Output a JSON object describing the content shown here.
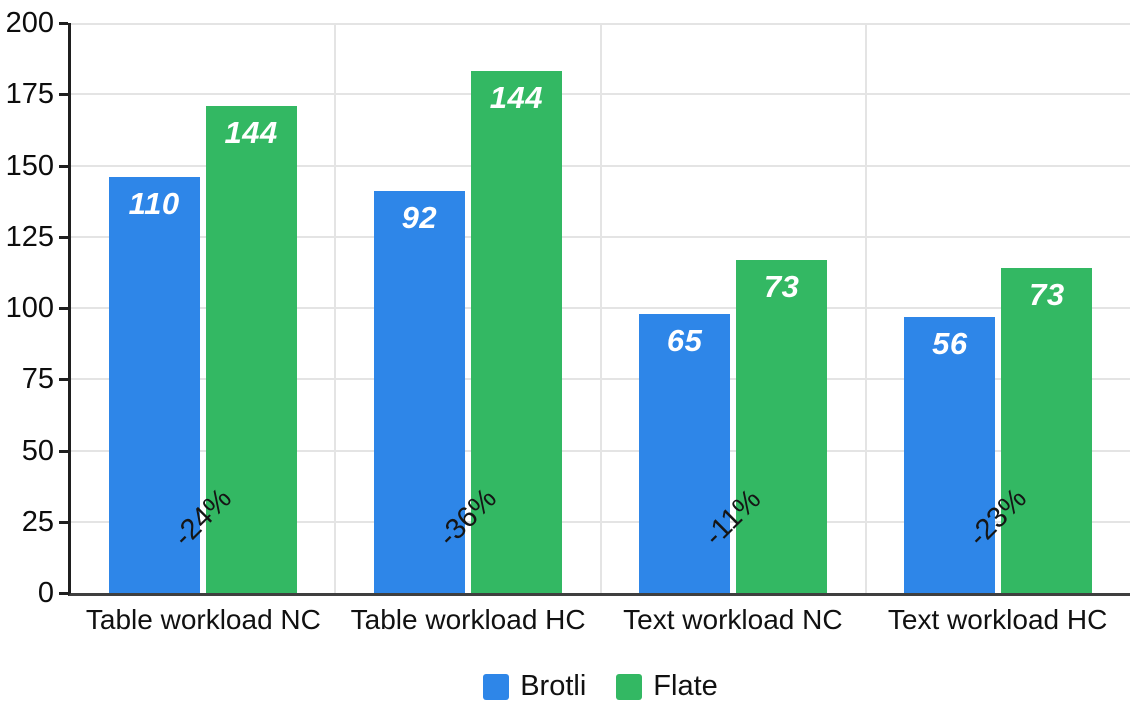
{
  "chart_data": {
    "type": "bar",
    "title": "",
    "xlabel": "",
    "ylabel": "",
    "categories": [
      "Table workload NC",
      "Table workload HC",
      "Text workload NC",
      "Text workload HC"
    ],
    "series": [
      {
        "name": "Brotli",
        "color": "#2e86e8",
        "label_values": [
          110,
          92,
          65,
          56
        ],
        "plotted_heights": [
          146,
          141,
          98,
          97
        ]
      },
      {
        "name": "Flate",
        "color": "#33b863",
        "label_values": [
          144,
          144,
          73,
          73
        ],
        "plotted_heights": [
          171,
          183,
          117,
          114
        ]
      }
    ],
    "diff_labels": [
      "-24%",
      "-36%",
      "-11%",
      "-23%"
    ],
    "ylim": [
      0,
      200
    ],
    "yticks": [
      0,
      25,
      50,
      75,
      100,
      125,
      150,
      175,
      200
    ],
    "grid": "on",
    "legend_position": "bottom",
    "colors": {
      "gridline": "#e4e4e4",
      "y_axis_line": "#1f1f1f",
      "x_axis_line": "#3f3f3f",
      "bar_label_text": "#ffffff",
      "diff_label_text": "#151515",
      "tick_label_text": "#0d0d0d"
    }
  }
}
